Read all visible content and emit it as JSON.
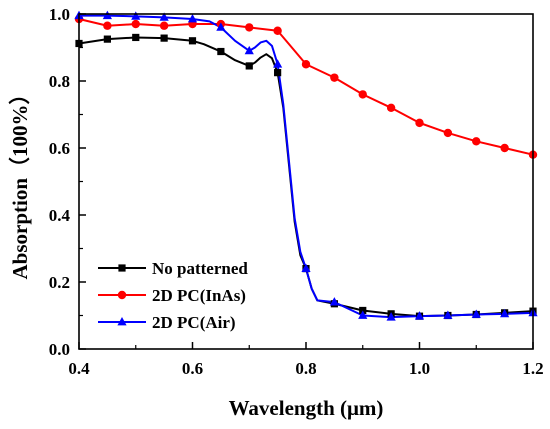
{
  "chart_data": {
    "type": "line",
    "title": "",
    "xlabel": "Wavelength (μm)",
    "ylabel": "Absorption（100%）",
    "xlim": [
      0.4,
      1.2
    ],
    "ylim": [
      0.0,
      1.0
    ],
    "xticks": [
      0.4,
      0.6,
      0.8,
      1.0,
      1.2
    ],
    "xtick_labels": [
      "0.4",
      "0.6",
      "0.8",
      "1.0",
      "1.2"
    ],
    "yticks": [
      0.0,
      0.2,
      0.4,
      0.6,
      0.8,
      1.0
    ],
    "ytick_labels": [
      "0.0",
      "0.2",
      "0.4",
      "0.6",
      "0.8",
      "1.0"
    ],
    "grid": false,
    "legend_position": "bottom-left",
    "series": [
      {
        "name": "No patterned",
        "color": "#000000",
        "marker": "square",
        "x": [
          0.4,
          0.45,
          0.5,
          0.55,
          0.6,
          0.65,
          0.7,
          0.75,
          0.8,
          0.85,
          0.9,
          0.95,
          1.0,
          1.05,
          1.1,
          1.15,
          1.2
        ],
        "y": [
          0.912,
          0.925,
          0.93,
          0.928,
          0.92,
          0.888,
          0.845,
          0.825,
          0.24,
          0.135,
          0.115,
          0.105,
          0.098,
          0.1,
          0.103,
          0.108,
          0.113
        ],
        "curve_x": [
          0.4,
          0.45,
          0.5,
          0.55,
          0.6,
          0.62,
          0.65,
          0.675,
          0.7,
          0.71,
          0.72,
          0.73,
          0.74,
          0.75,
          0.76,
          0.77,
          0.78,
          0.79,
          0.8,
          0.81,
          0.82,
          0.85,
          0.9,
          0.95,
          1.0,
          1.05,
          1.1,
          1.15,
          1.2
        ],
        "curve_y": [
          0.912,
          0.925,
          0.93,
          0.928,
          0.92,
          0.91,
          0.888,
          0.862,
          0.845,
          0.855,
          0.87,
          0.88,
          0.868,
          0.825,
          0.72,
          0.55,
          0.38,
          0.28,
          0.24,
          0.18,
          0.145,
          0.135,
          0.115,
          0.105,
          0.098,
          0.1,
          0.103,
          0.108,
          0.113
        ]
      },
      {
        "name": "2D PC(InAs)",
        "color": "#ff0000",
        "marker": "circle",
        "x": [
          0.4,
          0.45,
          0.5,
          0.55,
          0.6,
          0.65,
          0.7,
          0.75,
          0.8,
          0.85,
          0.9,
          0.95,
          1.0,
          1.05,
          1.1,
          1.15,
          1.2
        ],
        "y": [
          0.985,
          0.965,
          0.97,
          0.965,
          0.97,
          0.97,
          0.96,
          0.95,
          0.85,
          0.81,
          0.76,
          0.72,
          0.675,
          0.645,
          0.62,
          0.6,
          0.58
        ],
        "curve_x": [
          0.4,
          0.45,
          0.5,
          0.55,
          0.6,
          0.65,
          0.7,
          0.75,
          0.77,
          0.8,
          0.85,
          0.9,
          0.95,
          1.0,
          1.05,
          1.1,
          1.15,
          1.2
        ],
        "curve_y": [
          0.985,
          0.965,
          0.97,
          0.965,
          0.97,
          0.97,
          0.96,
          0.95,
          0.91,
          0.85,
          0.81,
          0.76,
          0.72,
          0.675,
          0.645,
          0.62,
          0.6,
          0.58
        ]
      },
      {
        "name": "2D PC(Air)",
        "color": "#0000ff",
        "marker": "triangle",
        "x": [
          0.4,
          0.45,
          0.5,
          0.55,
          0.6,
          0.65,
          0.7,
          0.75,
          0.8,
          0.85,
          0.9,
          0.95,
          1.0,
          1.05,
          1.1,
          1.15,
          1.2
        ],
        "y": [
          0.995,
          0.995,
          0.993,
          0.99,
          0.985,
          0.96,
          0.89,
          0.85,
          0.24,
          0.14,
          0.1,
          0.095,
          0.098,
          0.1,
          0.103,
          0.105,
          0.108
        ],
        "curve_x": [
          0.4,
          0.45,
          0.5,
          0.55,
          0.6,
          0.63,
          0.65,
          0.675,
          0.7,
          0.71,
          0.72,
          0.73,
          0.74,
          0.75,
          0.76,
          0.77,
          0.78,
          0.79,
          0.8,
          0.81,
          0.82,
          0.85,
          0.9,
          0.95,
          1.0,
          1.05,
          1.1,
          1.15,
          1.2
        ],
        "curve_y": [
          0.995,
          0.995,
          0.993,
          0.99,
          0.985,
          0.978,
          0.96,
          0.92,
          0.89,
          0.9,
          0.915,
          0.92,
          0.905,
          0.85,
          0.73,
          0.56,
          0.39,
          0.29,
          0.24,
          0.18,
          0.145,
          0.14,
          0.1,
          0.095,
          0.098,
          0.1,
          0.103,
          0.105,
          0.108
        ]
      }
    ]
  }
}
